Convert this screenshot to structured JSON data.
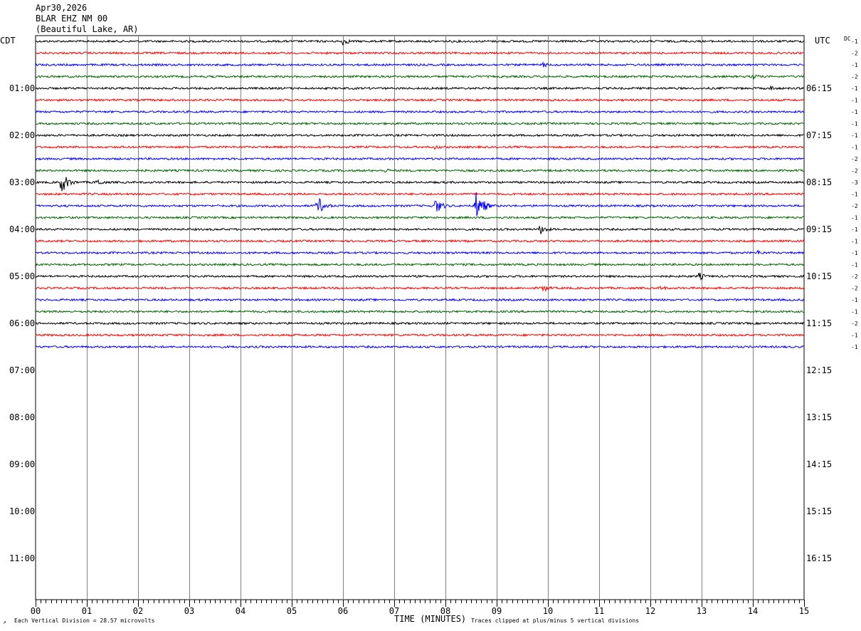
{
  "header": {
    "date": "Apr30,2026",
    "station": "BLAR EHZ NM 00",
    "location": "(Beautiful Lake, AR)"
  },
  "left_zone_label": "CDT",
  "right_zone_label": "UTC",
  "dc_label": "DC",
  "footer": {
    "vertical_division": "Each Vertical Division =   28.57 microvolts",
    "xlabel": "TIME (MINUTES)",
    "clip_note": "Traces clipped at plus/minus 5 vertical divisions"
  },
  "colors": {
    "trace_cycle": [
      "#000000",
      "#ff0000",
      "#0000ff",
      "#006400"
    ],
    "grid": "#808080"
  },
  "chart_data": {
    "type": "line",
    "title": "",
    "xlabel": "TIME (MINUTES)",
    "ylabel": "",
    "xlim": [
      0,
      15
    ],
    "x_ticks": [
      "00",
      "01",
      "02",
      "03",
      "04",
      "05",
      "06",
      "07",
      "08",
      "09",
      "10",
      "11",
      "12",
      "13",
      "14",
      "15"
    ],
    "hour_labels_left": [
      "01:00",
      "02:00",
      "03:00",
      "04:00",
      "05:00",
      "06:00",
      "07:00",
      "08:00",
      "09:00",
      "10:00",
      "11:00"
    ],
    "hour_labels_right": [
      "06:15",
      "07:15",
      "08:15",
      "09:15",
      "10:15",
      "11:15",
      "12:15",
      "13:15",
      "14:15",
      "15:15",
      "16:15"
    ],
    "rows_per_hour": 4,
    "total_rows": 48,
    "series": [
      {
        "dc": "-1"
      },
      {
        "dc": "-2"
      },
      {
        "dc": "-1"
      },
      {
        "dc": "-2"
      },
      {
        "dc": "-1"
      },
      {
        "dc": "-1"
      },
      {
        "dc": "-1"
      },
      {
        "dc": "-1"
      },
      {
        "dc": "-1"
      },
      {
        "dc": "-1"
      },
      {
        "dc": "-2"
      },
      {
        "dc": "-2"
      },
      {
        "dc": "-3"
      },
      {
        "dc": "-1"
      },
      {
        "dc": "-2"
      },
      {
        "dc": "-1"
      },
      {
        "dc": "-1"
      },
      {
        "dc": "-1"
      },
      {
        "dc": "-1"
      },
      {
        "dc": "-1"
      },
      {
        "dc": "-2"
      },
      {
        "dc": "-2"
      },
      {
        "dc": "-1"
      },
      {
        "dc": "-1"
      },
      {
        "dc": "-2"
      },
      {
        "dc": "-1"
      },
      {
        "dc": "-1"
      }
    ],
    "events": [
      {
        "row": 0,
        "minute": 6.0,
        "amp": 6
      },
      {
        "row": 2,
        "minute": 9.9,
        "amp": 4
      },
      {
        "row": 3,
        "minute": 14.0,
        "amp": 5
      },
      {
        "row": 4,
        "minute": 14.35,
        "amp": 4
      },
      {
        "row": 9,
        "minute": 7.8,
        "amp": 4
      },
      {
        "row": 11,
        "minute": 6.8,
        "amp": 4
      },
      {
        "row": 12,
        "minute": 0.5,
        "amp": 16
      },
      {
        "row": 12,
        "minute": 1.2,
        "amp": 6
      },
      {
        "row": 14,
        "minute": 5.5,
        "amp": 14
      },
      {
        "row": 14,
        "minute": 7.8,
        "amp": 12
      },
      {
        "row": 14,
        "minute": 8.6,
        "amp": 22
      },
      {
        "row": 16,
        "minute": 9.85,
        "amp": 8
      },
      {
        "row": 18,
        "minute": 14.1,
        "amp": 4
      },
      {
        "row": 20,
        "minute": 12.95,
        "amp": 6
      },
      {
        "row": 21,
        "minute": 9.9,
        "amp": 6
      },
      {
        "row": 21,
        "minute": 12.2,
        "amp": 4
      }
    ]
  }
}
